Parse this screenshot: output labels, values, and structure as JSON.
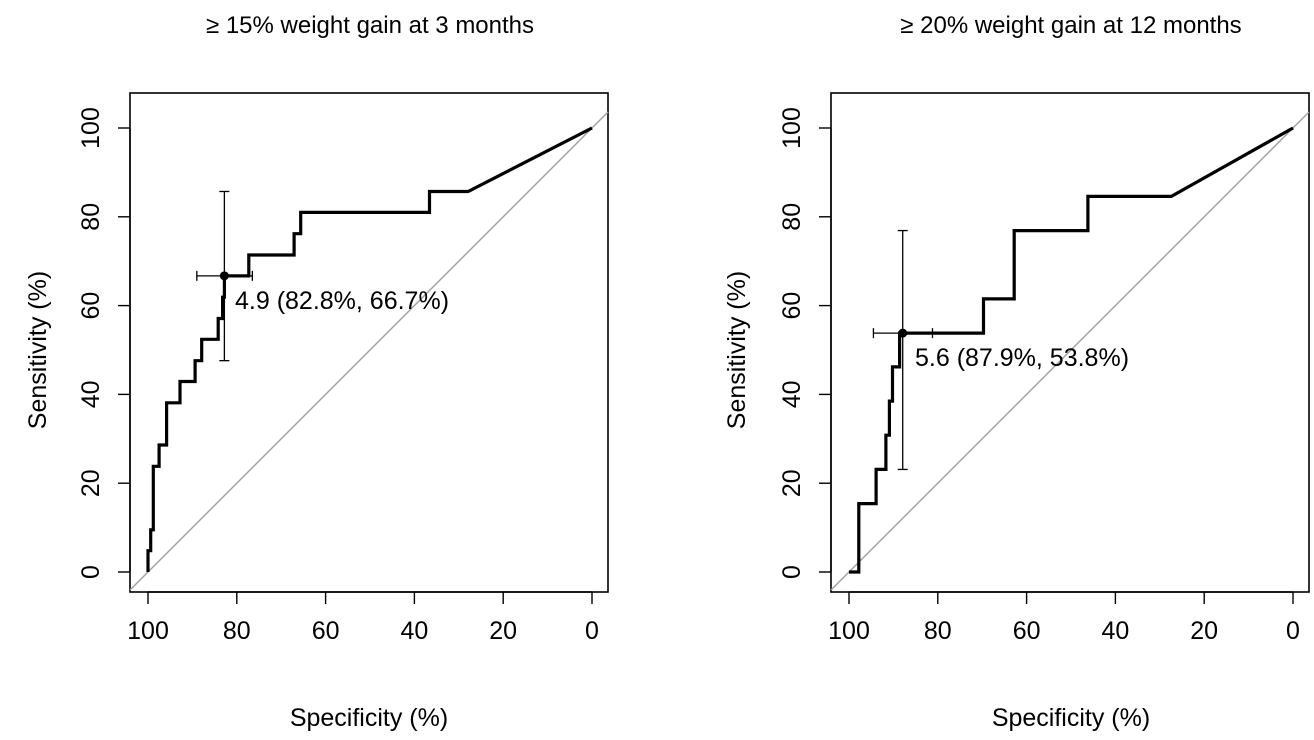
{
  "chart_data": [
    {
      "type": "line",
      "title": "≥ 15% weight gain at 3 months",
      "xlabel": "Specificity (%)",
      "ylabel": "Sensitivity (%)",
      "xlim": [
        100,
        0
      ],
      "ylim": [
        0,
        100
      ],
      "x_reversed": true,
      "xticks": [
        "100",
        "80",
        "60",
        "40",
        "20",
        "0"
      ],
      "yticks": [
        "0",
        "20",
        "40",
        "60",
        "80",
        "100"
      ],
      "grid": false,
      "legend": "none",
      "series": [
        {
          "x": [
            100,
            100,
            99.4,
            99.4,
            98.8,
            98.8,
            97.5,
            97.5,
            95.8,
            95.8,
            92.8,
            92.8,
            89.4,
            89.4,
            87.9,
            87.9,
            84.2,
            84.2,
            83.2,
            83.2,
            82.8,
            82.8,
            77.3,
            77.3,
            67.1,
            67.1,
            65.6,
            65.6,
            36.6,
            36.6,
            27.9,
            0
          ],
          "y": [
            0,
            4.8,
            4.8,
            9.5,
            9.5,
            23.8,
            23.8,
            28.6,
            28.6,
            38.1,
            38.1,
            42.9,
            42.9,
            47.6,
            47.6,
            52.4,
            52.4,
            57.1,
            57.1,
            61.9,
            61.9,
            66.7,
            66.7,
            71.4,
            71.4,
            76.2,
            76.2,
            81,
            81,
            85.7,
            85.7,
            100
          ]
        }
      ],
      "reference_line": {
        "from": [
          100,
          0
        ],
        "to": [
          0,
          100
        ],
        "color": "#a0a0a0"
      },
      "point": {
        "specificity": 82.8,
        "sensitivity": 66.7
      },
      "ci_specificity": [
        89,
        76.5
      ],
      "ci_sensitivity": [
        47.6,
        85.7
      ],
      "annotation": "4.9 (82.8%, 66.7%)",
      "line_color": "#000000"
    },
    {
      "type": "line",
      "title": "≥ 20% weight gain at 12 months",
      "xlabel": "Specificity (%)",
      "ylabel": "Sensitivity (%)",
      "xlim": [
        100,
        0
      ],
      "ylim": [
        0,
        100
      ],
      "x_reversed": true,
      "xticks": [
        "100",
        "80",
        "60",
        "40",
        "20",
        "0"
      ],
      "yticks": [
        "0",
        "20",
        "40",
        "60",
        "80",
        "100"
      ],
      "grid": false,
      "legend": "none",
      "series": [
        {
          "x": [
            100,
            97.8,
            97.8,
            93.9,
            93.9,
            91.7,
            91.7,
            90.9,
            90.9,
            90.2,
            90.2,
            88.6,
            88.6,
            87.9,
            87.9,
            69.7,
            69.7,
            62.8,
            62.8,
            46.2,
            46.2,
            27.4,
            0
          ],
          "y": [
            0,
            0,
            15.4,
            15.4,
            23.1,
            23.1,
            30.8,
            30.8,
            38.5,
            38.5,
            46.2,
            46.2,
            53.8,
            53.8,
            53.8,
            53.8,
            61.5,
            61.5,
            76.9,
            76.9,
            84.6,
            84.6,
            100
          ]
        }
      ],
      "reference_line": {
        "from": [
          100,
          0
        ],
        "to": [
          0,
          100
        ],
        "color": "#a0a0a0"
      },
      "point": {
        "specificity": 87.9,
        "sensitivity": 53.8
      },
      "ci_specificity": [
        94.5,
        81.2
      ],
      "ci_sensitivity": [
        23.1,
        76.9
      ],
      "annotation": "5.6 (87.9%, 53.8%)",
      "line_color": "#000000"
    }
  ]
}
